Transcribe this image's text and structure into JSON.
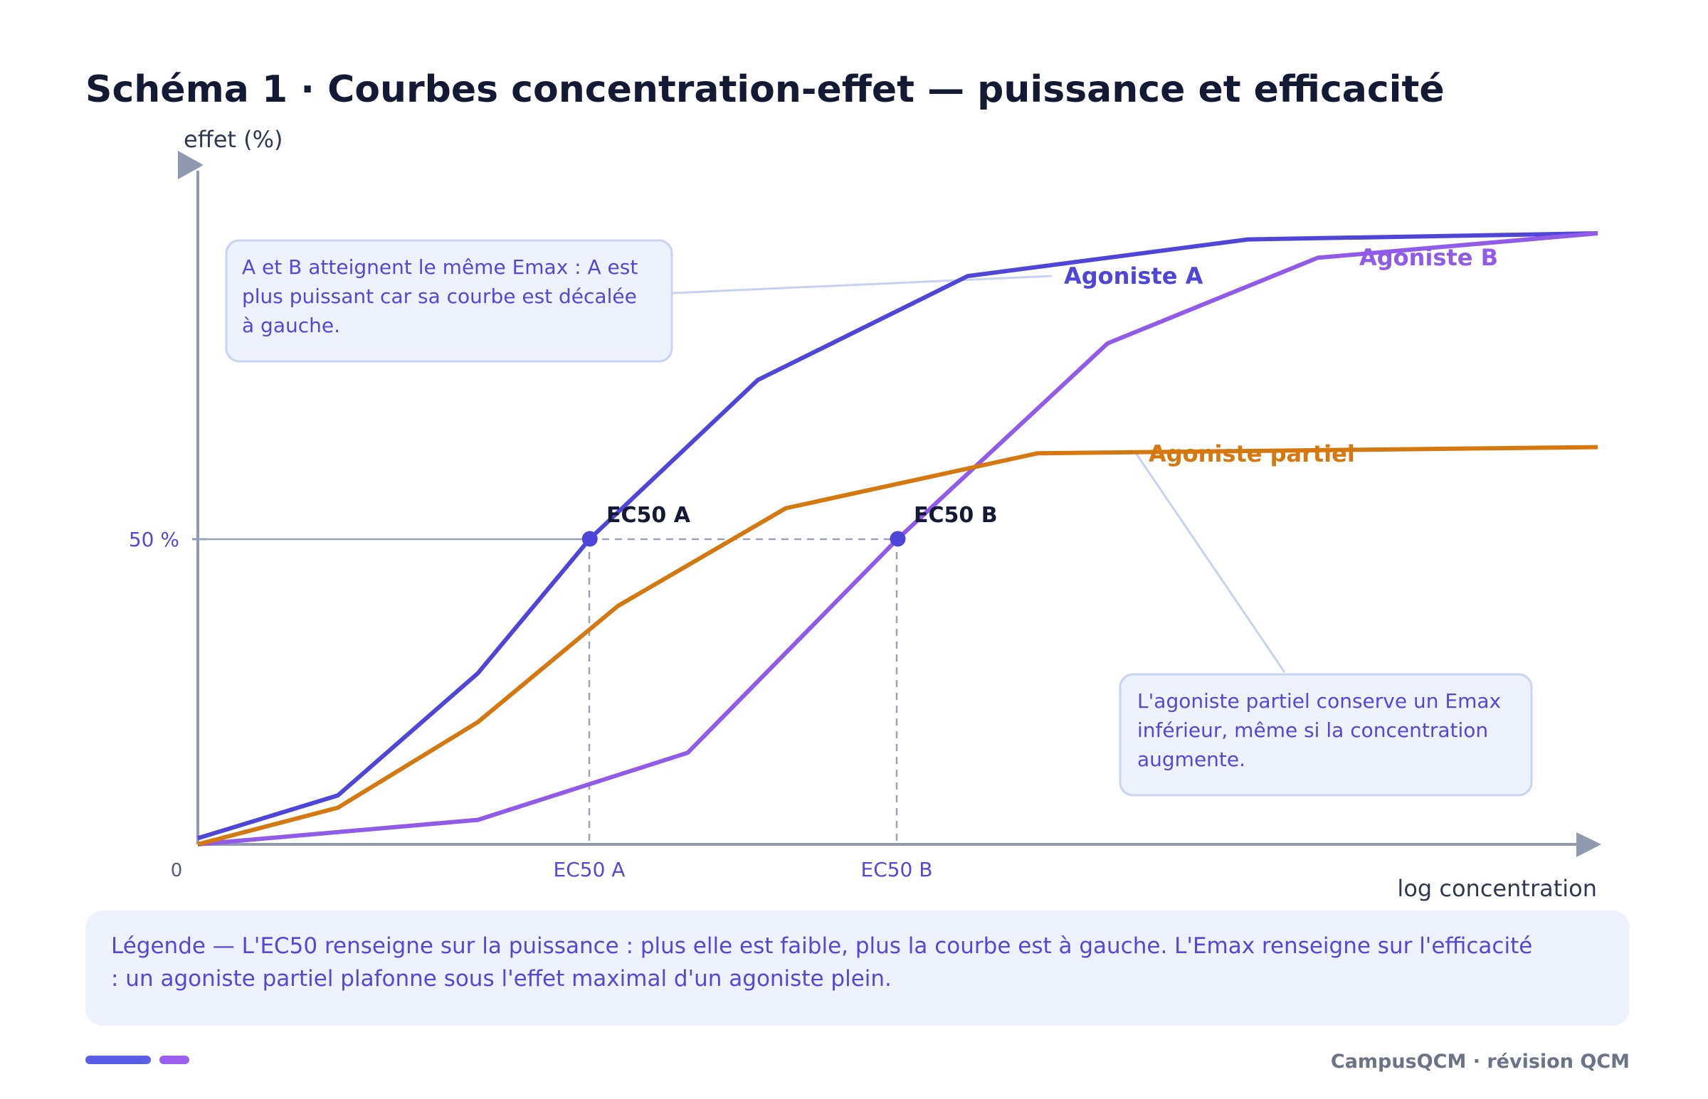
{
  "page": {
    "title": "Schéma 1 · Courbes concentration-effet — puissance et efficacité",
    "legend_lines": [
      "Légende — L'EC50 renseigne sur la puissance : plus elle est faible, plus la courbe est à gauche. L'Emax renseigne sur l'efficacité",
      ": un agoniste partiel plafonne sous l'effet maximal d'un agoniste plein."
    ],
    "footer": "CampusQCM · révision QCM",
    "colors": {
      "accent": "#5a45d8",
      "violet": "#8f5be8",
      "orange": "#d4780f",
      "axis": "#8f9aaf",
      "note_bg": "#eef2fc",
      "note_border": "#c9d3f2"
    }
  },
  "chart_data": {
    "type": "line",
    "xlabel": "log concentration",
    "ylabel": "effet (%)",
    "xlim": [
      0,
      10
    ],
    "ylim": [
      0,
      100
    ],
    "origin_label": "0",
    "y_ticks": [
      {
        "value": 50,
        "label": "50 %"
      }
    ],
    "x_ticks": [
      {
        "value": 2.8,
        "label": "EC50 A"
      },
      {
        "value": 5.0,
        "label": "EC50 B"
      }
    ],
    "series": [
      {
        "name": "Agoniste A",
        "color": "#4f46d9",
        "points": [
          [
            0,
            1
          ],
          [
            1,
            8
          ],
          [
            2,
            28
          ],
          [
            2.8,
            50
          ],
          [
            4,
            76
          ],
          [
            5.5,
            93
          ],
          [
            7.5,
            99
          ],
          [
            10,
            100
          ]
        ]
      },
      {
        "name": "Agoniste B",
        "color": "#8f5be8",
        "points": [
          [
            0,
            0
          ],
          [
            2,
            4
          ],
          [
            3.5,
            15
          ],
          [
            5,
            50
          ],
          [
            6.5,
            82
          ],
          [
            8,
            96
          ],
          [
            10,
            100
          ]
        ]
      },
      {
        "name": "Agoniste partiel",
        "color": "#d4780f",
        "points": [
          [
            0,
            0
          ],
          [
            1,
            6
          ],
          [
            2,
            20
          ],
          [
            3,
            39
          ],
          [
            4.2,
            55
          ],
          [
            6,
            64
          ],
          [
            10,
            65
          ]
        ]
      }
    ],
    "markers": [
      {
        "label": "EC50 A",
        "x": 2.8,
        "y": 50
      },
      {
        "label": "EC50 B",
        "x": 5.0,
        "y": 50
      }
    ],
    "annotations": [
      {
        "lines": [
          "A et B atteignent le même Emax : A est",
          "plus puissant car sa courbe est décalée",
          "à gauche."
        ],
        "target": "Agoniste A"
      },
      {
        "lines": [
          "L'agoniste partiel conserve un Emax",
          "inférieur, même si la concentration",
          "augmente."
        ],
        "target": "Agoniste partiel"
      }
    ]
  }
}
